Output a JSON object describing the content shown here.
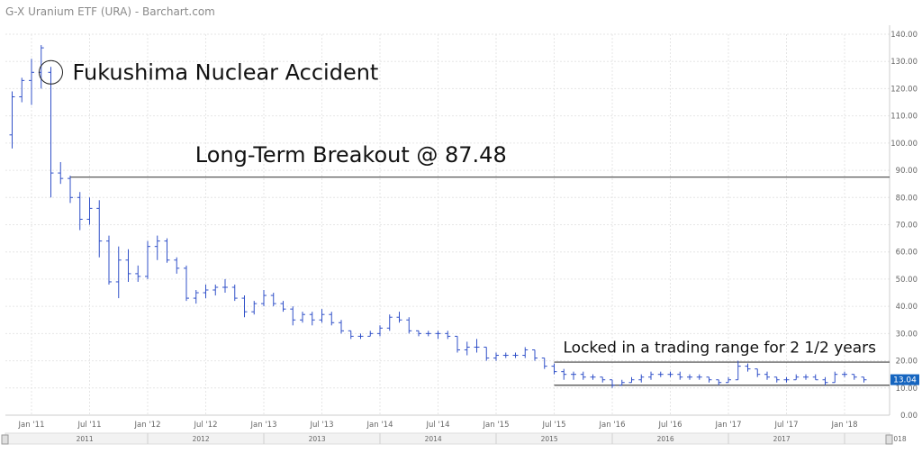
{
  "page": {
    "title": "G-X Uranium ETF (URA) - Barchart.com"
  },
  "chart_data": {
    "type": "ohlc",
    "title": "G-X Uranium ETF (URA) - Barchart.com",
    "y_axis_side": "right",
    "ylim": [
      0,
      140
    ],
    "y_ticks": [
      "0.00",
      "10.00",
      "20.00",
      "30.00",
      "40.00",
      "50.00",
      "60.00",
      "70.00",
      "80.00",
      "90.00",
      "100.00",
      "110.00",
      "120.00",
      "130.00",
      "140.00"
    ],
    "x_month_ticks": [
      "Jan '11",
      "Jul '11",
      "Jan '12",
      "Jul '12",
      "Jan '13",
      "Jul '13",
      "Jan '14",
      "Jul '14",
      "Jan '15",
      "Jul '15",
      "Jan '16",
      "Jul '16",
      "Jan '17",
      "Jul '17",
      "Jan '18"
    ],
    "x_year_ticks": [
      "2011",
      "2012",
      "2013",
      "2014",
      "2015",
      "2016",
      "2017",
      "2018"
    ],
    "last_price": "13.04",
    "bars": [
      {
        "date": "2010-11",
        "o": 103,
        "h": 119,
        "l": 98,
        "c": 117
      },
      {
        "date": "2010-12",
        "o": 117,
        "h": 124,
        "l": 115,
        "c": 123
      },
      {
        "date": "2011-01",
        "o": 123,
        "h": 131,
        "l": 114,
        "c": 126
      },
      {
        "date": "2011-02",
        "o": 126,
        "h": 136,
        "l": 120,
        "c": 135
      },
      {
        "date": "2011-03",
        "o": 126,
        "h": 128,
        "l": 80,
        "c": 89
      },
      {
        "date": "2011-04",
        "o": 89,
        "h": 93,
        "l": 85,
        "c": 87
      },
      {
        "date": "2011-05",
        "o": 87,
        "h": 88,
        "l": 78,
        "c": 80
      },
      {
        "date": "2011-06",
        "o": 80,
        "h": 82,
        "l": 68,
        "c": 72
      },
      {
        "date": "2011-07",
        "o": 72,
        "h": 80,
        "l": 70,
        "c": 76
      },
      {
        "date": "2011-08",
        "o": 76,
        "h": 79,
        "l": 58,
        "c": 64
      },
      {
        "date": "2011-09",
        "o": 64,
        "h": 66,
        "l": 48,
        "c": 49
      },
      {
        "date": "2011-10",
        "o": 49,
        "h": 62,
        "l": 43,
        "c": 57
      },
      {
        "date": "2011-11",
        "o": 57,
        "h": 61,
        "l": 49,
        "c": 52
      },
      {
        "date": "2011-12",
        "o": 52,
        "h": 55,
        "l": 49,
        "c": 51
      },
      {
        "date": "2012-01",
        "o": 51,
        "h": 64,
        "l": 50,
        "c": 62
      },
      {
        "date": "2012-02",
        "o": 62,
        "h": 66,
        "l": 57,
        "c": 64
      },
      {
        "date": "2012-03",
        "o": 64,
        "h": 65,
        "l": 56,
        "c": 57
      },
      {
        "date": "2012-04",
        "o": 57,
        "h": 58,
        "l": 52,
        "c": 54
      },
      {
        "date": "2012-05",
        "o": 54,
        "h": 55,
        "l": 42,
        "c": 43
      },
      {
        "date": "2012-06",
        "o": 43,
        "h": 46,
        "l": 41,
        "c": 45
      },
      {
        "date": "2012-07",
        "o": 45,
        "h": 48,
        "l": 43,
        "c": 46
      },
      {
        "date": "2012-08",
        "o": 46,
        "h": 48,
        "l": 44,
        "c": 47
      },
      {
        "date": "2012-09",
        "o": 47,
        "h": 50,
        "l": 45,
        "c": 47
      },
      {
        "date": "2012-10",
        "o": 47,
        "h": 48,
        "l": 42,
        "c": 43
      },
      {
        "date": "2012-11",
        "o": 43,
        "h": 44,
        "l": 36,
        "c": 38
      },
      {
        "date": "2012-12",
        "o": 38,
        "h": 42,
        "l": 37,
        "c": 41
      },
      {
        "date": "2013-01",
        "o": 41,
        "h": 46,
        "l": 40,
        "c": 44
      },
      {
        "date": "2013-02",
        "o": 44,
        "h": 45,
        "l": 40,
        "c": 41
      },
      {
        "date": "2013-03",
        "o": 41,
        "h": 42,
        "l": 38,
        "c": 39
      },
      {
        "date": "2013-04",
        "o": 39,
        "h": 40,
        "l": 33,
        "c": 35
      },
      {
        "date": "2013-05",
        "o": 35,
        "h": 38,
        "l": 34,
        "c": 37
      },
      {
        "date": "2013-06",
        "o": 37,
        "h": 38,
        "l": 33,
        "c": 35
      },
      {
        "date": "2013-07",
        "o": 35,
        "h": 39,
        "l": 34,
        "c": 37
      },
      {
        "date": "2013-08",
        "o": 37,
        "h": 38,
        "l": 33,
        "c": 34
      },
      {
        "date": "2013-09",
        "o": 34,
        "h": 35,
        "l": 30,
        "c": 31
      },
      {
        "date": "2013-10",
        "o": 31,
        "h": 31,
        "l": 28,
        "c": 29
      },
      {
        "date": "2013-11",
        "o": 29,
        "h": 30,
        "l": 28,
        "c": 29
      },
      {
        "date": "2013-12",
        "o": 29,
        "h": 31,
        "l": 29,
        "c": 30
      },
      {
        "date": "2014-01",
        "o": 30,
        "h": 33,
        "l": 29,
        "c": 32
      },
      {
        "date": "2014-02",
        "o": 32,
        "h": 37,
        "l": 31,
        "c": 36
      },
      {
        "date": "2014-03",
        "o": 36,
        "h": 38,
        "l": 34,
        "c": 35
      },
      {
        "date": "2014-04",
        "o": 35,
        "h": 36,
        "l": 30,
        "c": 31
      },
      {
        "date": "2014-05",
        "o": 31,
        "h": 31,
        "l": 29,
        "c": 30
      },
      {
        "date": "2014-06",
        "o": 30,
        "h": 31,
        "l": 29,
        "c": 30
      },
      {
        "date": "2014-07",
        "o": 30,
        "h": 31,
        "l": 28,
        "c": 30
      },
      {
        "date": "2014-08",
        "o": 30,
        "h": 31,
        "l": 28,
        "c": 29
      },
      {
        "date": "2014-09",
        "o": 29,
        "h": 29,
        "l": 23,
        "c": 24
      },
      {
        "date": "2014-10",
        "o": 24,
        "h": 27,
        "l": 22,
        "c": 25
      },
      {
        "date": "2014-11",
        "o": 25,
        "h": 28,
        "l": 23,
        "c": 25
      },
      {
        "date": "2014-12",
        "o": 25,
        "h": 25,
        "l": 20,
        "c": 21
      },
      {
        "date": "2015-01",
        "o": 21,
        "h": 23,
        "l": 20,
        "c": 22
      },
      {
        "date": "2015-02",
        "o": 22,
        "h": 23,
        "l": 21,
        "c": 22
      },
      {
        "date": "2015-03",
        "o": 22,
        "h": 23,
        "l": 21,
        "c": 22
      },
      {
        "date": "2015-04",
        "o": 22,
        "h": 25,
        "l": 21,
        "c": 24
      },
      {
        "date": "2015-05",
        "o": 24,
        "h": 24,
        "l": 20,
        "c": 21
      },
      {
        "date": "2015-06",
        "o": 21,
        "h": 21,
        "l": 17,
        "c": 18
      },
      {
        "date": "2015-07",
        "o": 18,
        "h": 19,
        "l": 15,
        "c": 16
      },
      {
        "date": "2015-08",
        "o": 16,
        "h": 17,
        "l": 13,
        "c": 15
      },
      {
        "date": "2015-09",
        "o": 15,
        "h": 16,
        "l": 13,
        "c": 15
      },
      {
        "date": "2015-10",
        "o": 15,
        "h": 16,
        "l": 13,
        "c": 14
      },
      {
        "date": "2015-11",
        "o": 14,
        "h": 15,
        "l": 13,
        "c": 14
      },
      {
        "date": "2015-12",
        "o": 14,
        "h": 14,
        "l": 12,
        "c": 13
      },
      {
        "date": "2016-01",
        "o": 13,
        "h": 13,
        "l": 10,
        "c": 11
      },
      {
        "date": "2016-02",
        "o": 11,
        "h": 13,
        "l": 11,
        "c": 12
      },
      {
        "date": "2016-03",
        "o": 12,
        "h": 14,
        "l": 12,
        "c": 13
      },
      {
        "date": "2016-04",
        "o": 13,
        "h": 15,
        "l": 12,
        "c": 14
      },
      {
        "date": "2016-05",
        "o": 14,
        "h": 16,
        "l": 13,
        "c": 15
      },
      {
        "date": "2016-06",
        "o": 15,
        "h": 16,
        "l": 14,
        "c": 15
      },
      {
        "date": "2016-07",
        "o": 15,
        "h": 16,
        "l": 14,
        "c": 15
      },
      {
        "date": "2016-08",
        "o": 15,
        "h": 16,
        "l": 13,
        "c": 14
      },
      {
        "date": "2016-09",
        "o": 14,
        "h": 15,
        "l": 13,
        "c": 14
      },
      {
        "date": "2016-10",
        "o": 14,
        "h": 15,
        "l": 13,
        "c": 14
      },
      {
        "date": "2016-11",
        "o": 14,
        "h": 14,
        "l": 12,
        "c": 13
      },
      {
        "date": "2016-12",
        "o": 13,
        "h": 13,
        "l": 11,
        "c": 12
      },
      {
        "date": "2017-01",
        "o": 12,
        "h": 14,
        "l": 12,
        "c": 13
      },
      {
        "date": "2017-02",
        "o": 13,
        "h": 20,
        "l": 13,
        "c": 18
      },
      {
        "date": "2017-03",
        "o": 18,
        "h": 19,
        "l": 16,
        "c": 17
      },
      {
        "date": "2017-04",
        "o": 17,
        "h": 17,
        "l": 14,
        "c": 15
      },
      {
        "date": "2017-05",
        "o": 15,
        "h": 16,
        "l": 13,
        "c": 14
      },
      {
        "date": "2017-06",
        "o": 14,
        "h": 14,
        "l": 12,
        "c": 13
      },
      {
        "date": "2017-07",
        "o": 13,
        "h": 14,
        "l": 12,
        "c": 13
      },
      {
        "date": "2017-08",
        "o": 13,
        "h": 15,
        "l": 13,
        "c": 14
      },
      {
        "date": "2017-09",
        "o": 14,
        "h": 15,
        "l": 13,
        "c": 14
      },
      {
        "date": "2017-10",
        "o": 14,
        "h": 15,
        "l": 13,
        "c": 13
      },
      {
        "date": "2017-11",
        "o": 13,
        "h": 14,
        "l": 11,
        "c": 12
      },
      {
        "date": "2017-12",
        "o": 12,
        "h": 16,
        "l": 12,
        "c": 15
      },
      {
        "date": "2018-01",
        "o": 15,
        "h": 16,
        "l": 14,
        "c": 15
      },
      {
        "date": "2018-02",
        "o": 15,
        "h": 15,
        "l": 13,
        "c": 14
      },
      {
        "date": "2018-03",
        "o": 14,
        "h": 14,
        "l": 12,
        "c": 13
      }
    ],
    "levels": [
      {
        "value": 87.48,
        "from": "2011-05",
        "to": "2018-04"
      },
      {
        "value": 19.5,
        "from": "2015-07",
        "to": "2018-04"
      },
      {
        "value": 11,
        "from": "2015-07",
        "to": "2018-04"
      }
    ],
    "annotations": [
      {
        "text": "Fukushima Nuclear Accident",
        "near": "2011-03",
        "value": 126
      },
      {
        "text": "Long-Term Breakout @ 87.48",
        "near": "2013-10",
        "value": 93
      },
      {
        "text": "Locked in a trading range for 2 1/2 years",
        "near": "2015-07",
        "value": 23
      }
    ],
    "colors": {
      "bars": "#3050c8",
      "lines": "#444444",
      "price_tag": "#1565c0"
    }
  }
}
